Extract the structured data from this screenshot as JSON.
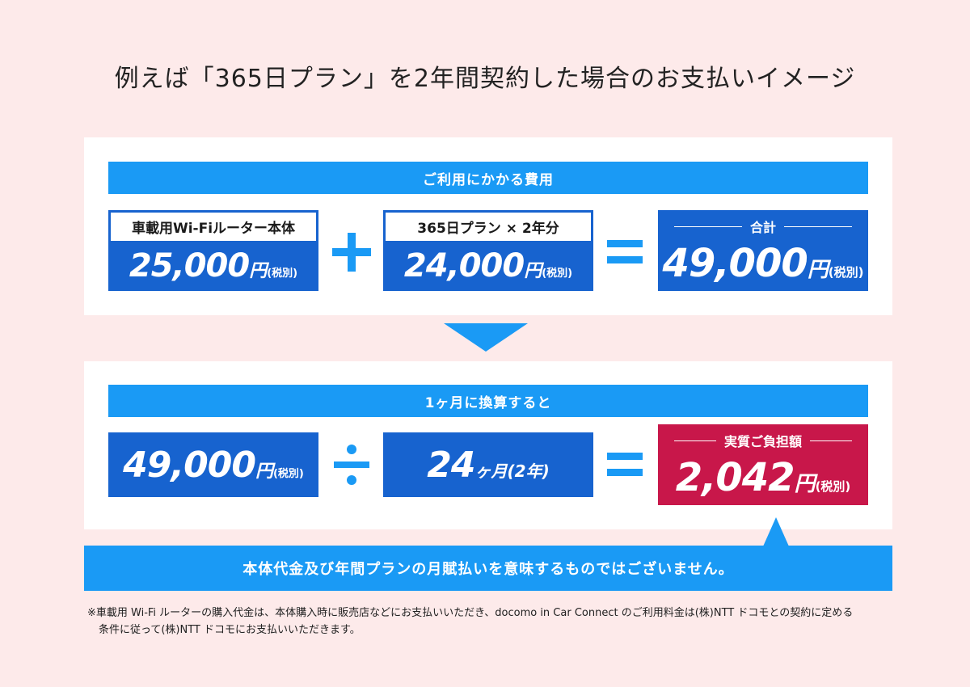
{
  "title": "例えば「365日プラン」を2年間契約した場合のお支払いイメージ",
  "section1": {
    "header": "ご利用にかかる費用",
    "item1": {
      "label": "車載用Wi-Fiルーター本体",
      "amount": "25,000",
      "unit": "円",
      "tax": "(税別)"
    },
    "op1": "+",
    "item2": {
      "label": "365日プラン × 2年分",
      "amount": "24,000",
      "unit": "円",
      "tax": "(税別)"
    },
    "op2": "=",
    "total": {
      "caption": "合計",
      "amount": "49,000",
      "unit": "円",
      "tax": "(税別)"
    }
  },
  "section2": {
    "header": "1ヶ月に換算すると",
    "item1": {
      "amount": "49,000",
      "unit": "円",
      "tax": "(税別)"
    },
    "op1": "÷",
    "item2": {
      "amount": "24",
      "unit": "ヶ月",
      "extra": "(2年)"
    },
    "op2": "=",
    "result": {
      "caption": "実質ご負担額",
      "amount": "2,042",
      "unit": "円",
      "tax": "(税別)"
    }
  },
  "notice": "本体代金及び年間プランの月賦払いを意味するものではございません。",
  "footnote": {
    "line1": "※車載用 Wi-Fi ルーターの購入代金は、本体購入時に販売店などにお支払いいただき、docomo in Car Connect のご利用料金は(株)NTT ドコモとの契約に定める",
    "line2": "条件に従って(株)NTT ドコモにお支払いいただきます。"
  },
  "colors": {
    "background": "#fdeaea",
    "accent_light": "#1a9af5",
    "accent_dark": "#1763cf",
    "result": "#c8174a"
  }
}
